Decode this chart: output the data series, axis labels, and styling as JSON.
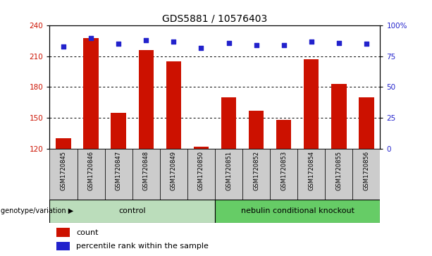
{
  "title": "GDS5881 / 10576403",
  "samples": [
    "GSM1720845",
    "GSM1720846",
    "GSM1720847",
    "GSM1720848",
    "GSM1720849",
    "GSM1720850",
    "GSM1720851",
    "GSM1720852",
    "GSM1720853",
    "GSM1720854",
    "GSM1720855",
    "GSM1720856"
  ],
  "counts": [
    130,
    228,
    155,
    216,
    205,
    122,
    170,
    157,
    148,
    207,
    183,
    170
  ],
  "percentiles": [
    83,
    90,
    85,
    88,
    87,
    82,
    86,
    84,
    84,
    87,
    86,
    85
  ],
  "ylim_left": [
    120,
    240
  ],
  "ylim_right": [
    0,
    100
  ],
  "yticks_left": [
    120,
    150,
    180,
    210,
    240
  ],
  "yticks_right": [
    0,
    25,
    50,
    75,
    100
  ],
  "yticklabels_right": [
    "0",
    "25",
    "50",
    "75",
    "100%"
  ],
  "bar_color": "#cc1100",
  "dot_color": "#2222cc",
  "bar_width": 0.55,
  "groups": [
    {
      "label": "control",
      "start": 0,
      "end": 5,
      "color": "#bbddbb"
    },
    {
      "label": "nebulin conditional knockout",
      "start": 6,
      "end": 11,
      "color": "#66cc66"
    }
  ],
  "group_label_prefix": "genotype/variation",
  "legend_count_label": "count",
  "legend_percentile_label": "percentile rank within the sample",
  "plot_bg": "#ffffff",
  "sample_bg": "#cccccc",
  "title_fontsize": 10,
  "tick_fontsize": 7.5,
  "label_fontsize": 6,
  "group_fontsize": 8,
  "legend_fontsize": 8
}
